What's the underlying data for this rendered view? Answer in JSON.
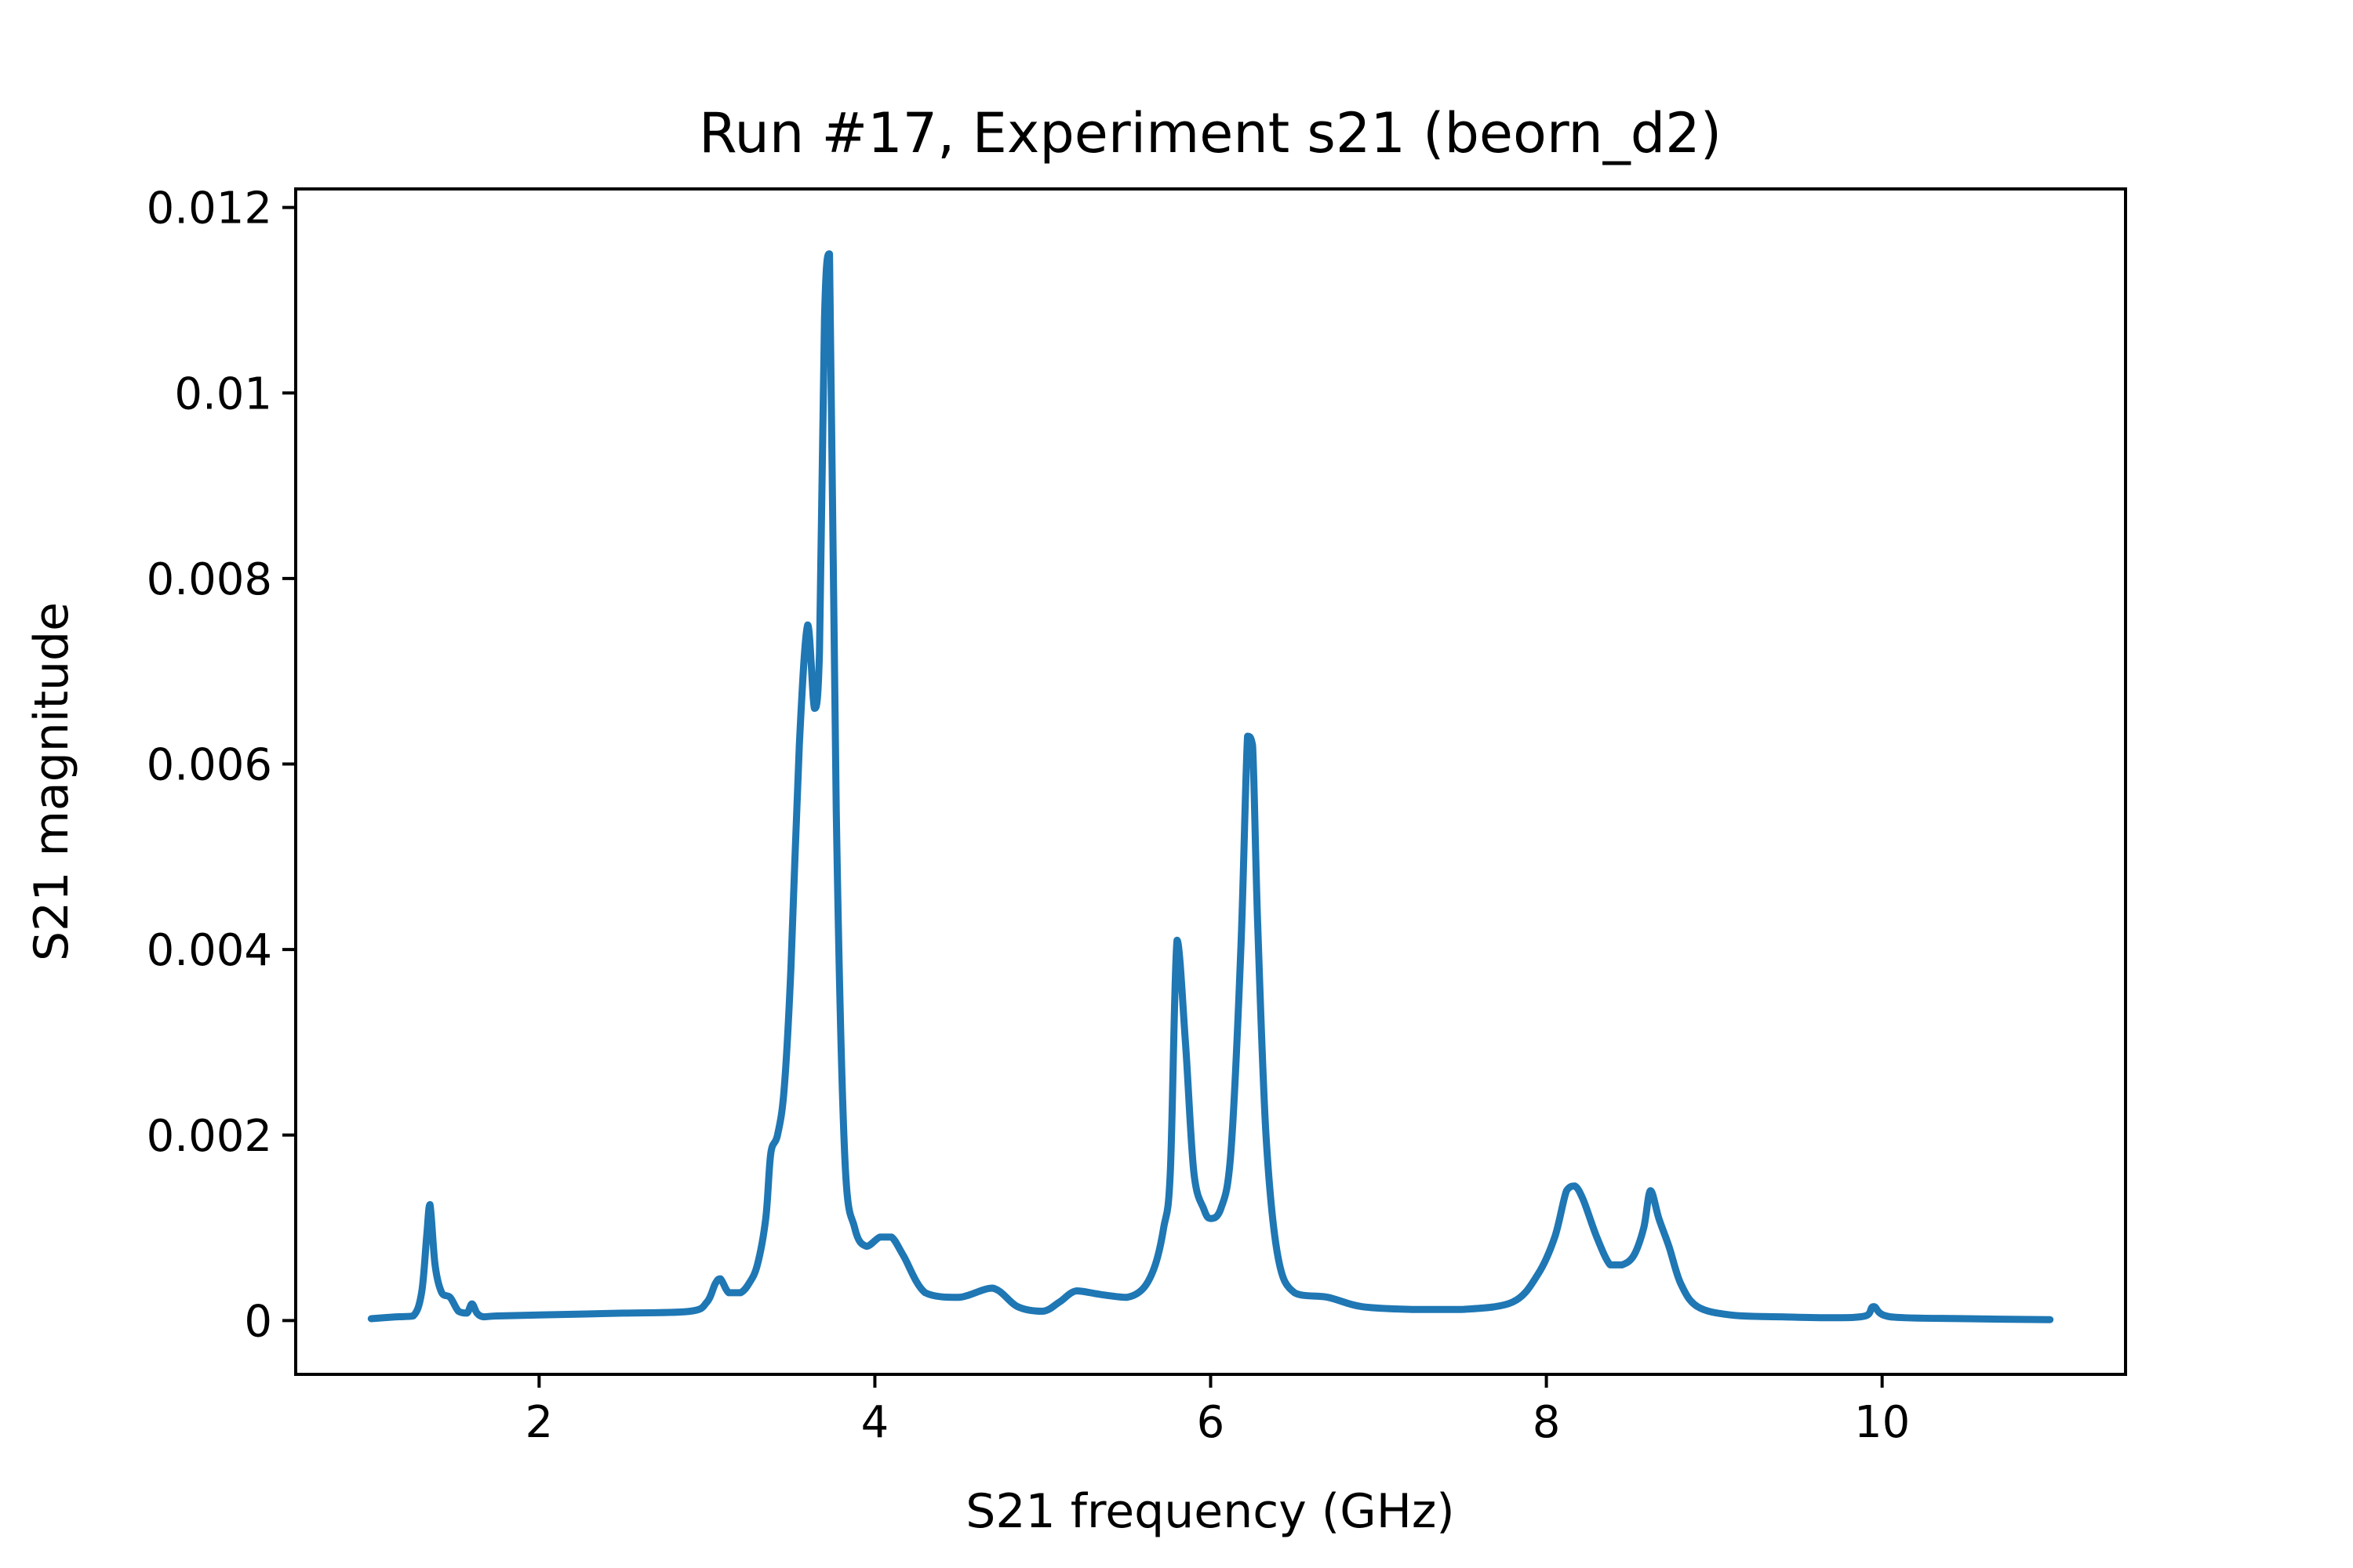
{
  "chart_data": {
    "type": "line",
    "title": "Run #17, Experiment s21 (beorn_d2)",
    "xlabel": "S21 frequency (GHz)",
    "ylabel": "S21 magnitude",
    "xlim": [
      0.55,
      11.45
    ],
    "ylim": [
      -0.00058,
      0.0122
    ],
    "xticks": [
      2,
      4,
      6,
      8,
      10
    ],
    "xtick_labels": [
      "2",
      "4",
      "6",
      "8",
      "10"
    ],
    "yticks": [
      0,
      0.002,
      0.004,
      0.006,
      0.008,
      0.01,
      0.012
    ],
    "ytick_labels": [
      "0",
      "0.002",
      "0.004",
      "0.006",
      "0.008",
      "0.01",
      "0.012"
    ],
    "grid": false,
    "series": [
      {
        "color": "#1f77b4",
        "x": [
          1.0,
          1.15,
          1.25,
          1.3,
          1.33,
          1.35,
          1.38,
          1.42,
          1.47,
          1.52,
          1.57,
          1.6,
          1.63,
          1.67,
          1.75,
          2.0,
          2.5,
          2.9,
          3.0,
          3.05,
          3.08,
          3.13,
          3.2,
          3.25,
          3.3,
          3.35,
          3.38,
          3.42,
          3.46,
          3.5,
          3.55,
          3.6,
          3.64,
          3.67,
          3.7,
          3.73,
          3.77,
          3.82,
          3.88,
          3.95,
          4.03,
          4.1,
          4.17,
          4.3,
          4.5,
          4.7,
          4.85,
          5.0,
          5.1,
          5.2,
          5.35,
          5.5,
          5.6,
          5.67,
          5.72,
          5.76,
          5.8,
          5.85,
          5.9,
          5.96,
          6.0,
          6.06,
          6.12,
          6.18,
          6.22,
          6.25,
          6.28,
          6.33,
          6.4,
          6.5,
          6.7,
          6.9,
          7.2,
          7.5,
          7.8,
          7.95,
          8.05,
          8.12,
          8.17,
          8.22,
          8.3,
          8.38,
          8.45,
          8.52,
          8.58,
          8.62,
          8.67,
          8.73,
          8.8,
          8.9,
          9.1,
          9.4,
          9.7,
          9.9,
          9.95,
          10.05,
          10.5,
          11.0
        ],
        "y": [
          2e-05,
          4e-05,
          5e-05,
          0.0003,
          0.0009,
          0.00125,
          0.0006,
          0.0003,
          0.00025,
          0.0001,
          8e-05,
          0.00018,
          8e-05,
          4e-05,
          5e-05,
          6e-05,
          8e-05,
          0.0001,
          0.0002,
          0.0004,
          0.00045,
          0.0003,
          0.0003,
          0.0004,
          0.0006,
          0.0011,
          0.0018,
          0.002,
          0.0025,
          0.0038,
          0.0062,
          0.0075,
          0.0066,
          0.0072,
          0.0108,
          0.0115,
          0.0055,
          0.0018,
          0.001,
          0.0008,
          0.0009,
          0.0009,
          0.0007,
          0.0003,
          0.00025,
          0.00035,
          0.00015,
          0.0001,
          0.0002,
          0.00032,
          0.00028,
          0.00025,
          0.00035,
          0.0006,
          0.001,
          0.0016,
          0.0041,
          0.003,
          0.0016,
          0.0012,
          0.0011,
          0.0012,
          0.0018,
          0.004,
          0.0063,
          0.0062,
          0.0043,
          0.002,
          0.0007,
          0.0003,
          0.00025,
          0.00015,
          0.00012,
          0.00012,
          0.0002,
          0.0005,
          0.0009,
          0.0014,
          0.00145,
          0.0013,
          0.0009,
          0.0006,
          0.0006,
          0.0007,
          0.001,
          0.0014,
          0.0011,
          0.0008,
          0.0004,
          0.00015,
          6e-05,
          4e-05,
          3e-05,
          5e-05,
          0.00015,
          4e-05,
          2e-05,
          1e-05
        ]
      }
    ]
  }
}
